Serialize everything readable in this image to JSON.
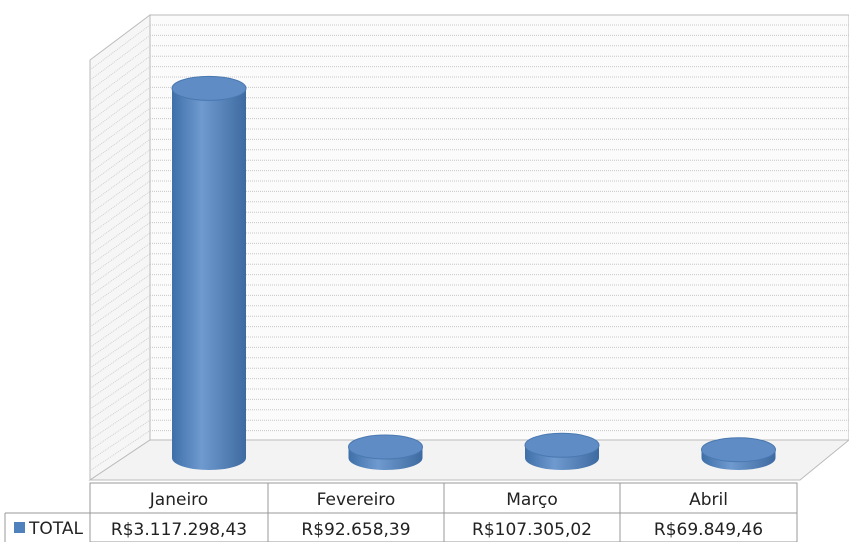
{
  "chart_data": {
    "type": "bar3d",
    "categories": [
      "Janeiro",
      "Fevereiro",
      "Março",
      "Abril"
    ],
    "series": [
      {
        "name": "TOTAL",
        "color": "#4f81bd",
        "values": [
          3117298.43,
          92658.39,
          107305.02,
          69849.46
        ],
        "value_labels": [
          "R$3.117.298,43",
          "R$92.658,39",
          "R$107.305,02",
          "R$69.849,46"
        ]
      }
    ],
    "ylim": [
      0,
      3500000
    ]
  }
}
